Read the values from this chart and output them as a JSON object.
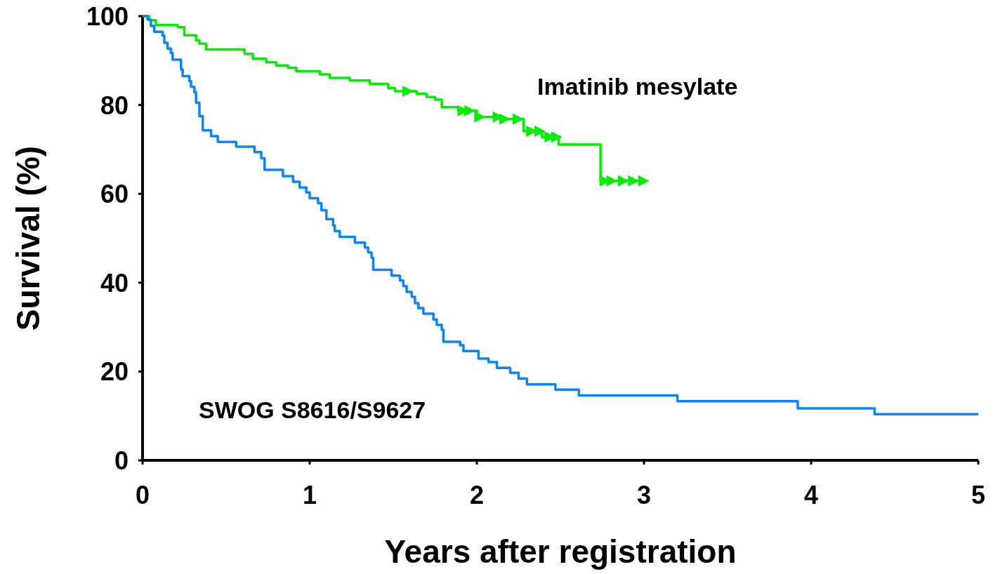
{
  "chart_data": {
    "type": "step",
    "xlabel": "Years after registration",
    "ylabel": "Survival (%)",
    "xlim": [
      0,
      5
    ],
    "ylim": [
      0,
      100
    ],
    "xticks": [
      0,
      1,
      2,
      3,
      4,
      5
    ],
    "yticks": [
      0,
      20,
      40,
      60,
      80,
      100
    ],
    "series": [
      {
        "name": "Imatinib mesylate",
        "color": "#00ee00",
        "x": [
          0,
          0.04,
          0.08,
          0.21,
          0.25,
          0.32,
          0.34,
          0.38,
          0.61,
          0.66,
          0.74,
          0.8,
          0.87,
          0.92,
          1.06,
          1.12,
          1.24,
          1.36,
          1.47,
          1.51,
          1.64,
          1.7,
          1.75,
          1.79,
          1.89,
          2.0,
          2.15,
          2.28,
          2.39,
          2.49,
          2.74,
          3.0
        ],
        "values": [
          100,
          99.1,
          98.0,
          97.5,
          95.7,
          94.5,
          93.8,
          92.5,
          91.5,
          90.4,
          89.6,
          88.9,
          88.4,
          87.6,
          86.9,
          86.1,
          85.5,
          84.7,
          83.8,
          83.1,
          82.5,
          81.8,
          81.2,
          79.5,
          78.7,
          77.3,
          76.8,
          74.1,
          72.8,
          71.1,
          62.9,
          62.9
        ]
      },
      {
        "color": "#00ee00",
        "type": "scatter",
        "marker": "triangle",
        "x": [
          1.58,
          1.91,
          1.95,
          2.01,
          2.12,
          2.16,
          2.24,
          2.32,
          2.37,
          2.43,
          2.47,
          2.76,
          2.8,
          2.87,
          2.93,
          2.99
        ],
        "values": [
          83.1,
          78.7,
          78.7,
          77.3,
          77.3,
          76.8,
          76.8,
          74.1,
          74.1,
          72.8,
          72.8,
          62.9,
          62.9,
          62.9,
          62.9,
          62.9
        ]
      },
      {
        "name": "SWOG S8616/S9627",
        "color": "#0a84ff",
        "x": [
          0,
          0.03,
          0.05,
          0.07,
          0.12,
          0.13,
          0.15,
          0.17,
          0.18,
          0.23,
          0.24,
          0.28,
          0.29,
          0.31,
          0.32,
          0.34,
          0.36,
          0.41,
          0.45,
          0.56,
          0.67,
          0.71,
          0.73,
          0.84,
          0.9,
          0.94,
          0.98,
          1.0,
          1.05,
          1.07,
          1.1,
          1.14,
          1.15,
          1.18,
          1.27,
          1.33,
          1.35,
          1.37,
          1.38,
          1.49,
          1.54,
          1.56,
          1.58,
          1.61,
          1.63,
          1.65,
          1.68,
          1.74,
          1.76,
          1.79,
          1.8,
          1.9,
          1.92,
          2.01,
          2.07,
          2.12,
          2.2,
          2.25,
          2.3,
          2.47,
          2.61,
          3.2,
          3.92,
          4.38,
          5.0
        ],
        "values": [
          100,
          99.2,
          97.8,
          96.5,
          95.6,
          94.0,
          92.7,
          91.7,
          90.2,
          88.0,
          86.5,
          85.4,
          84.1,
          82.9,
          80.5,
          77.5,
          74.3,
          73.0,
          71.7,
          70.6,
          69.4,
          68.0,
          65.4,
          64.0,
          62.7,
          61.4,
          60.3,
          59.0,
          57.9,
          56.3,
          54.3,
          52.9,
          51.6,
          50.3,
          49.0,
          47.9,
          46.8,
          45.6,
          42.9,
          41.6,
          40.5,
          39.2,
          37.9,
          36.8,
          35.4,
          34.3,
          33.0,
          31.7,
          30.5,
          29.4,
          26.7,
          25.9,
          24.6,
          22.9,
          22.1,
          20.8,
          19.7,
          18.4,
          17.1,
          15.9,
          14.6,
          13.3,
          11.7,
          10.4,
          10.4
        ]
      }
    ]
  }
}
